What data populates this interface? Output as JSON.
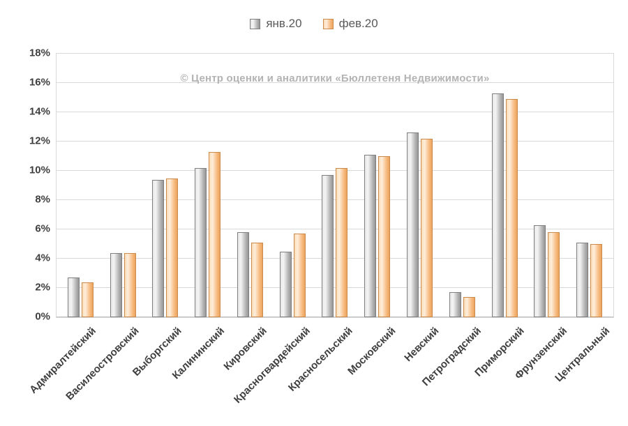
{
  "watermark": "© Центр оценки и аналитики «Бюллетеня Недвижимости»",
  "chart_data": {
    "type": "bar",
    "title": "",
    "xlabel": "",
    "ylabel": "",
    "ylim": [
      0,
      18
    ],
    "ytick_step": 2,
    "ytick_suffix": "%",
    "grid": true,
    "legend_position": "top",
    "categories": [
      "Адмиралтейский",
      "Василеостровский",
      "Выборгский",
      "Калининский",
      "Кировский",
      "Красногвардейский",
      "Красносельский",
      "Московский",
      "Невский",
      "Петроградский",
      "Приморский",
      "Фрунзенский",
      "Центральный"
    ],
    "series": [
      {
        "name": "янв.20",
        "color": "#bfbfbf",
        "border_color": "#7f7f7f",
        "values": [
          2.7,
          4.4,
          9.4,
          10.2,
          5.8,
          4.5,
          9.7,
          11.1,
          12.6,
          1.7,
          15.3,
          6.3,
          5.1
        ]
      },
      {
        "name": "фев.20",
        "color": "#fac090",
        "border_color": "#c98a4b",
        "values": [
          2.4,
          4.4,
          9.5,
          11.3,
          5.1,
          5.7,
          10.2,
          11.0,
          12.2,
          1.4,
          14.9,
          5.8,
          5.0
        ]
      }
    ]
  }
}
